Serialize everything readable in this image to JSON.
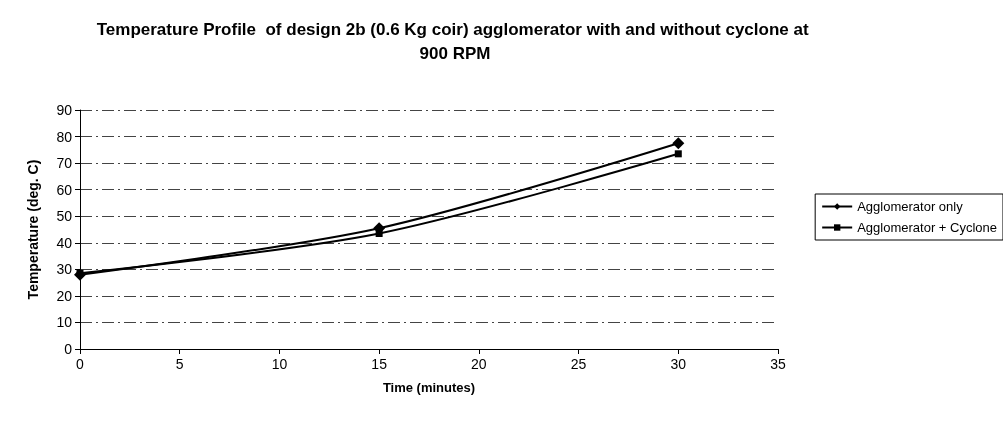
{
  "chart_data": {
    "type": "line",
    "title": "Temperature Profile  of design 2b (0.6 Kg coir) agglomerator with and without cyclone at 900 RPM",
    "xlabel": "Time (minutes)",
    "ylabel": "Temperature (deg. C)",
    "x": [
      0,
      15,
      30
    ],
    "series": [
      {
        "name": "Agglomerator only",
        "color": "#000000",
        "marker": "diamond",
        "values": [
          28,
          45.5,
          77.5
        ]
      },
      {
        "name": "Agglomerator + Cyclone",
        "color": "#000000",
        "marker": "square",
        "values": [
          28.5,
          43.5,
          73.5
        ]
      }
    ],
    "xlim": [
      0,
      35
    ],
    "xticks": [
      0,
      5,
      10,
      15,
      20,
      25,
      30,
      35
    ],
    "ylim": [
      0,
      90
    ],
    "yticks": [
      0,
      10,
      20,
      30,
      40,
      50,
      60,
      70,
      80,
      90
    ],
    "grid": "y",
    "legend": "right"
  }
}
